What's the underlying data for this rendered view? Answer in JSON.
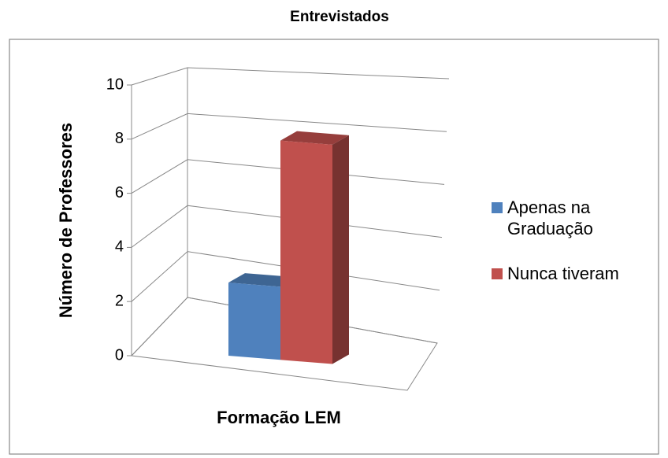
{
  "chart_data": {
    "type": "bar3d",
    "title": "Entrevistados",
    "y_label": "Número de Professores",
    "x_label": "Formação LEM",
    "categories": [
      null
    ],
    "series": [
      {
        "name": "Apenas na Graduação",
        "color": "#4f81bd",
        "values": [
          3
        ]
      },
      {
        "name": "Nunca tiveram",
        "color": "#c0504d",
        "values": [
          9
        ]
      }
    ],
    "ylim": [
      0,
      10
    ],
    "yticks": [
      0,
      2,
      4,
      6,
      8,
      10
    ],
    "grid": true,
    "legend": "right"
  }
}
